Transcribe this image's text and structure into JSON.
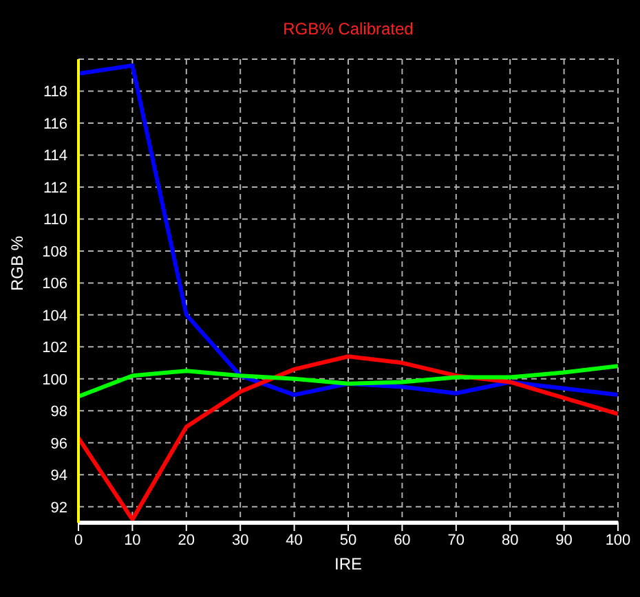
{
  "chart_data": {
    "type": "line",
    "title": "RGB% Calibrated",
    "xlabel": "IRE",
    "ylabel": "RGB %",
    "x": [
      0,
      10,
      20,
      30,
      40,
      50,
      60,
      70,
      80,
      90,
      100
    ],
    "series": [
      {
        "color": "#0000ff",
        "values": [
          119.1,
          119.6,
          104.0,
          100.2,
          99.0,
          99.7,
          99.5,
          99.1,
          99.8,
          99.4,
          99.0
        ]
      },
      {
        "color": "#ff0000",
        "values": [
          96.3,
          91.2,
          97.0,
          99.2,
          100.6,
          101.4,
          101.0,
          100.2,
          99.8,
          98.8,
          97.8
        ]
      },
      {
        "color": "#00ff00",
        "values": [
          98.9,
          100.2,
          100.5,
          100.2,
          100.0,
          99.7,
          99.8,
          100.1,
          100.1,
          100.4,
          100.8
        ]
      }
    ],
    "xlim": [
      0,
      100
    ],
    "xticks": [
      0,
      10,
      20,
      30,
      40,
      50,
      60,
      70,
      80,
      90,
      100
    ],
    "ylim": [
      91,
      120
    ],
    "yticks": [
      92,
      94,
      96,
      98,
      100,
      102,
      104,
      106,
      108,
      110,
      112,
      114,
      116,
      118
    ],
    "grid": true,
    "legend": false,
    "marker": "none",
    "line_style": "solid"
  }
}
